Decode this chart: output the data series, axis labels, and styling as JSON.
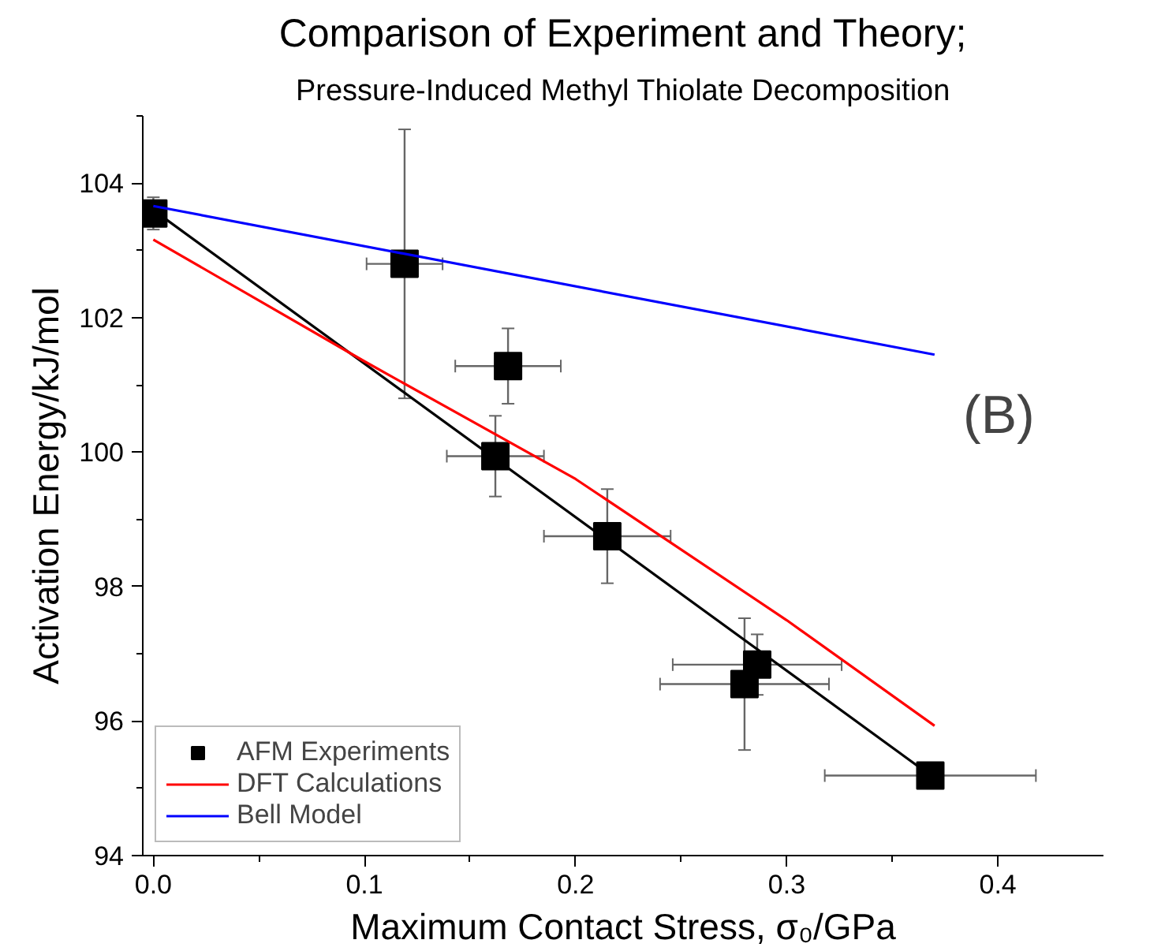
{
  "chart_data": {
    "type": "scatter",
    "title": "Comparison of Experiment and Theory;",
    "subtitle": "Pressure-Induced Methyl Thiolate Decomposition",
    "xlabel": "Maximum Contact Stress, σ₀/GPa",
    "ylabel": "Activation Energy/kJ/mol",
    "annotations": [
      "(B)"
    ],
    "xlim": [
      -0.005,
      0.45
    ],
    "xticks": [
      {
        "value": 0,
        "label": "0.0"
      },
      0.1,
      0.2,
      0.3,
      0.4
    ],
    "ylim": [
      94,
      105
    ],
    "yticks": [
      94,
      96,
      98,
      100,
      102,
      104
    ],
    "grid": false,
    "legend": "bottom left",
    "series": [
      {
        "name": "AFM Experiments",
        "marker": "square",
        "color": "#000000",
        "x": [
          0.0,
          0.119,
          0.168,
          0.162,
          0.215,
          0.286,
          0.28,
          0.368
        ],
        "values": [
          103.55,
          102.8,
          101.28,
          99.94,
          98.75,
          96.84,
          96.55,
          95.19
        ],
        "errors": [
          0.24,
          2.0,
          0.56,
          0.6,
          0.7,
          0.45,
          0.98,
          0.15
        ],
        "xerrors": [
          null,
          0.018,
          0.025,
          0.023,
          0.03,
          0.04,
          0.04,
          0.05
        ]
      },
      {
        "type": "line",
        "color": "#000000",
        "x": [
          0.0,
          0.37
        ],
        "values": [
          103.6,
          95.15
        ]
      },
      {
        "name": "DFT Calculations",
        "type": "line",
        "color": "#ff0000",
        "x": [
          0.0,
          0.1,
          0.2,
          0.3,
          0.37
        ],
        "values": [
          103.16,
          101.35,
          99.6,
          97.5,
          95.93
        ]
      },
      {
        "name": "Bell Model",
        "type": "line",
        "color": "#0000ff",
        "x": [
          0.0,
          0.37
        ],
        "values": [
          103.66,
          101.45
        ]
      }
    ]
  }
}
